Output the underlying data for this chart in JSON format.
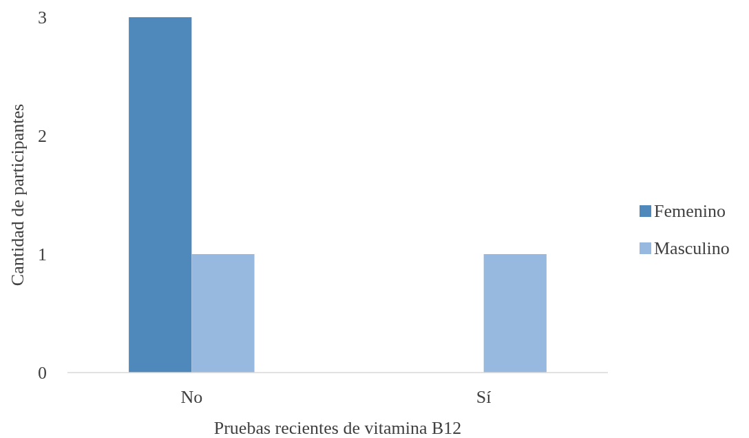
{
  "chart_data": {
    "type": "bar",
    "xlabel": "Pruebas recientes de vitamina B12",
    "ylabel": "Cantidad de participantes",
    "categories": [
      "No",
      "Sí"
    ],
    "series": [
      {
        "name": "Femenino",
        "color": "#4f88bb",
        "values": [
          3,
          0
        ]
      },
      {
        "name": "Masculino",
        "color": "#98b9df",
        "values": [
          1,
          1
        ]
      }
    ],
    "ylim": [
      0,
      3
    ],
    "yticks": [
      0,
      1,
      2,
      3
    ],
    "grid": false,
    "legend": "right"
  }
}
